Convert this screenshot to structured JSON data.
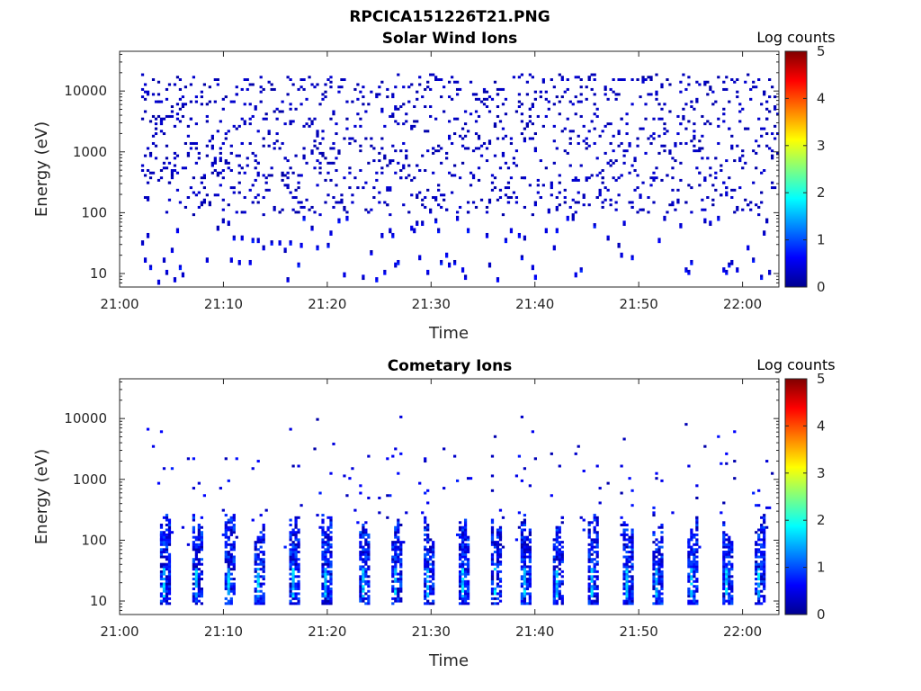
{
  "figure": {
    "title": "RPCICA151226T21.PNG"
  },
  "chart_data": [
    {
      "type": "heatmap",
      "title": "Solar Wind Ions",
      "xlabel": "Time",
      "ylabel": "Energy (eV)",
      "x_ticks": [
        "21:00",
        "21:10",
        "21:20",
        "21:30",
        "21:40",
        "21:50",
        "22:00"
      ],
      "x_tick_minutes": [
        0,
        10,
        20,
        30,
        40,
        50,
        60
      ],
      "xlim_minutes": [
        0,
        63.5
      ],
      "y_scale": "log",
      "ylim": [
        6,
        45000
      ],
      "y_ticks": [
        10,
        100,
        1000,
        10000
      ],
      "y_tick_labels": [
        "10",
        "100",
        "1000",
        "10000"
      ],
      "colorbar": {
        "label": "Log counts",
        "range": [
          0,
          5
        ],
        "ticks": [
          "0",
          "1",
          "2",
          "3",
          "4",
          "5"
        ],
        "colormap": "jet"
      },
      "pattern": "sparse",
      "dominant_level": 0.3,
      "low_energy_rows_level": 0.5,
      "grid": false
    },
    {
      "type": "heatmap",
      "title": "Cometary Ions",
      "xlabel": "Time",
      "ylabel": "Energy (eV)",
      "x_ticks": [
        "21:00",
        "21:10",
        "21:20",
        "21:30",
        "21:40",
        "21:50",
        "22:00"
      ],
      "x_tick_minutes": [
        0,
        10,
        20,
        30,
        40,
        50,
        60
      ],
      "xlim_minutes": [
        0,
        63.5
      ],
      "y_scale": "log",
      "ylim": [
        6,
        45000
      ],
      "y_ticks": [
        10,
        100,
        1000,
        10000
      ],
      "y_tick_labels": [
        "10",
        "100",
        "1000",
        "10000"
      ],
      "colorbar": {
        "label": "Log counts",
        "range": [
          0,
          5
        ],
        "ticks": [
          "0",
          "1",
          "2",
          "3",
          "4",
          "5"
        ],
        "colormap": "jet"
      },
      "pattern": "bursts",
      "burst_minutes": [
        4.2,
        7.3,
        10.3,
        13.3,
        16.6,
        19.7,
        23.4,
        26.5,
        29.5,
        32.8,
        35.9,
        38.9,
        42.0,
        45.4,
        48.7,
        51.7,
        54.9,
        58.2,
        61.3
      ],
      "burst_peak_level": 1.8,
      "grid": false
    }
  ]
}
